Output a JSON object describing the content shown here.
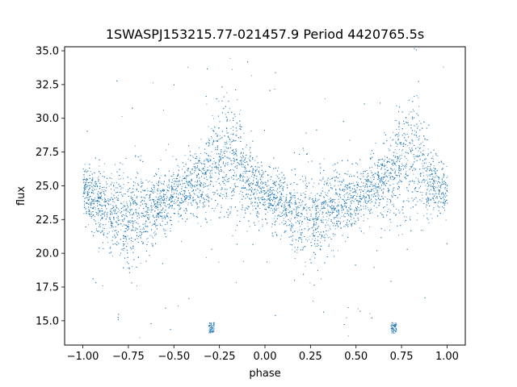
{
  "chart_data": {
    "type": "scatter",
    "title": "1SWASPJ153215.77-021457.9 Period 4420765.5s",
    "xlabel": "phase",
    "ylabel": "flux",
    "xlim": [
      -1.1,
      1.1
    ],
    "ylim": [
      13.2,
      35.3
    ],
    "x_ticks": [
      -1.0,
      -0.75,
      -0.5,
      -0.25,
      0.0,
      0.25,
      0.5,
      0.75,
      1.0
    ],
    "x_tick_labels": [
      "−1.00",
      "−0.75",
      "−0.50",
      "−0.25",
      "0.00",
      "0.25",
      "0.50",
      "0.75",
      "1.00"
    ],
    "y_ticks": [
      15.0,
      17.5,
      20.0,
      22.5,
      25.0,
      27.5,
      30.0,
      32.5,
      35.0
    ],
    "y_tick_labels": [
      "15.0",
      "17.5",
      "20.0",
      "22.5",
      "25.0",
      "27.5",
      "30.0",
      "32.5",
      "35.0"
    ],
    "marker_color": "#1f77b4",
    "grid": false,
    "legend": "none",
    "series": [
      {
        "x": [
          -1.0,
          -0.95,
          -0.9,
          -0.85,
          -0.8,
          -0.75,
          -0.7,
          -0.65,
          -0.6,
          -0.55,
          -0.5,
          -0.45,
          -0.4,
          -0.35,
          -0.3,
          -0.25,
          -0.2,
          -0.15,
          -0.1,
          -0.05,
          0.0,
          0.05,
          0.1,
          0.15,
          0.2,
          0.25,
          0.3,
          0.35,
          0.4,
          0.45,
          0.5,
          0.55,
          0.6,
          0.65,
          0.7,
          0.75,
          0.8,
          0.85,
          0.9,
          0.95,
          1.0
        ],
        "y": [
          24.8,
          24.0,
          23.5,
          23.0,
          22.8,
          22.7,
          23.0,
          23.3,
          23.6,
          23.8,
          24.2,
          24.6,
          25.0,
          25.5,
          26.0,
          26.8,
          27.2,
          26.5,
          25.5,
          24.8,
          24.5,
          24.0,
          23.5,
          23.0,
          22.8,
          22.7,
          23.0,
          23.3,
          23.6,
          23.8,
          24.2,
          24.6,
          25.0,
          25.5,
          26.0,
          26.8,
          27.2,
          26.5,
          25.5,
          24.8,
          24.5
        ],
        "spread": [
          1.2,
          1.4,
          1.6,
          1.8,
          2.2,
          2.4,
          2.2,
          1.8,
          1.6,
          1.5,
          1.4,
          1.4,
          1.5,
          1.8,
          2.2,
          2.6,
          2.8,
          2.4,
          1.8,
          1.4,
          1.2,
          1.4,
          1.6,
          1.8,
          2.2,
          2.4,
          2.2,
          1.8,
          1.6,
          1.5,
          1.4,
          1.4,
          1.5,
          1.8,
          2.2,
          2.6,
          2.8,
          2.4,
          1.8,
          1.4,
          1.2
        ]
      }
    ],
    "outlier_clusters": [
      {
        "x": [
          -0.31,
          -0.28
        ],
        "y": [
          14.1,
          14.9
        ]
      },
      {
        "x": [
          0.69,
          0.72
        ],
        "y": [
          14.1,
          14.9
        ]
      }
    ]
  }
}
